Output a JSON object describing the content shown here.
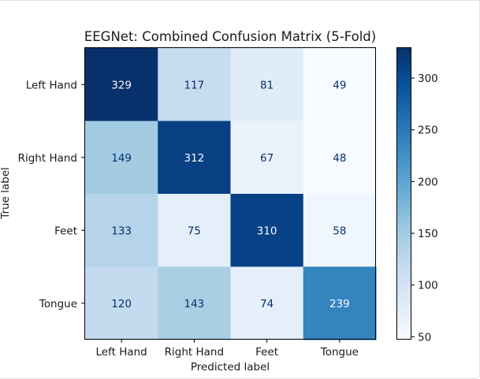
{
  "chart_data": {
    "type": "heatmap",
    "title": "EEGNet: Combined Confusion Matrix (5-Fold)",
    "xlabel": "Predicted label",
    "ylabel": "True label",
    "x_categories": [
      "Left Hand",
      "Right Hand",
      "Feet",
      "Tongue"
    ],
    "y_categories": [
      "Left Hand",
      "Right Hand",
      "Feet",
      "Tongue"
    ],
    "values": [
      [
        329,
        117,
        81,
        49
      ],
      [
        149,
        312,
        67,
        48
      ],
      [
        133,
        75,
        310,
        58
      ],
      [
        120,
        143,
        74,
        239
      ]
    ],
    "colormap": "Blues",
    "vmin": 48,
    "vmax": 329,
    "colorbar_ticks": [
      50,
      100,
      150,
      200,
      250,
      300
    ],
    "grid": false
  }
}
